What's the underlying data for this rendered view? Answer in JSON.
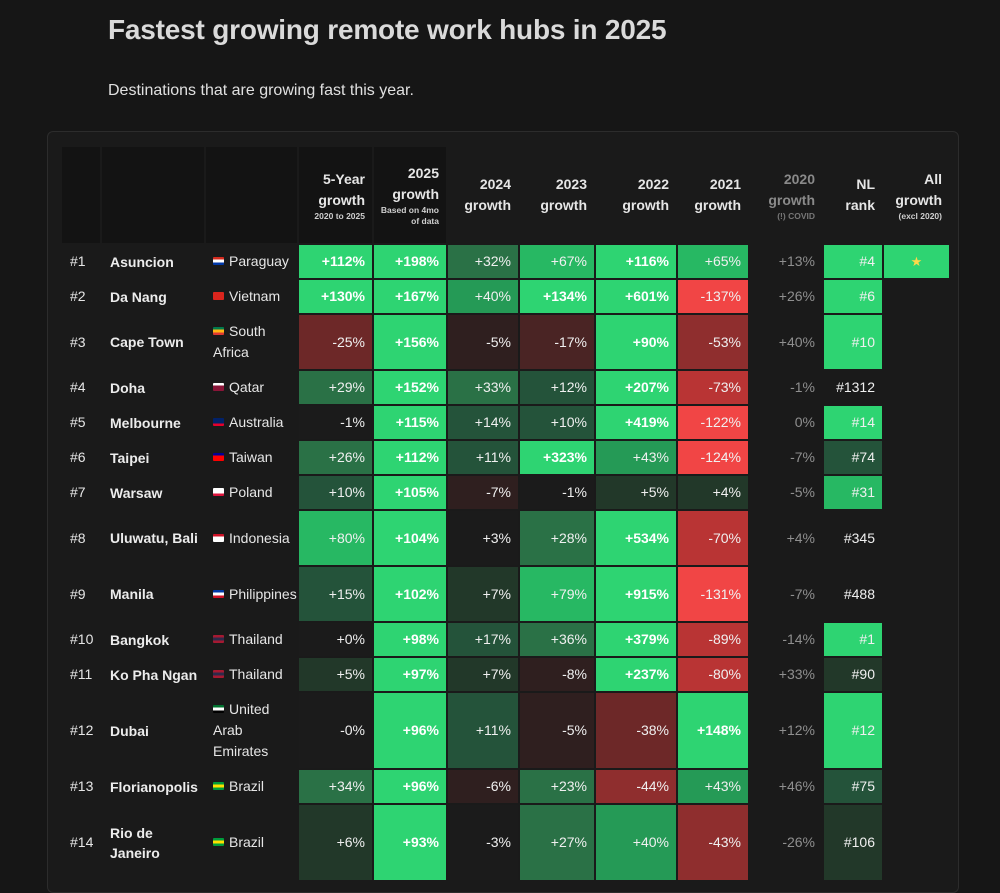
{
  "page": {
    "title": "Fastest growing remote work hubs in 2025",
    "subtitle": "Destinations that are growing fast this year."
  },
  "headers": [
    {
      "label": "5-Year growth",
      "note": "2020 to 2025"
    },
    {
      "label": "2025 growth",
      "note": "Based on 4mo of data"
    },
    {
      "label": "2024 growth",
      "note": ""
    },
    {
      "label": "2023 growth",
      "note": ""
    },
    {
      "label": "2022 growth",
      "note": ""
    },
    {
      "label": "2021 growth",
      "note": ""
    },
    {
      "label": "2020 growth",
      "note": "(!) COVID"
    },
    {
      "label": "NL rank",
      "note": ""
    },
    {
      "label": "All growth",
      "note": "(excl 2020)"
    }
  ],
  "rows": [
    {
      "rank": "#1",
      "city": "Asuncion",
      "country": "Paraguay",
      "flag": [
        "#d52b1e",
        "#ffffff",
        "#0038a8"
      ],
      "cells": [
        "+112%",
        "+198%",
        "+32%",
        "+67%",
        "+116%",
        "+65%",
        "+13%",
        "#4",
        "★"
      ]
    },
    {
      "rank": "#2",
      "city": "Da Nang",
      "country": "Vietnam",
      "flag": [
        "#da251d",
        "#da251d",
        "#da251d"
      ],
      "cells": [
        "+130%",
        "+167%",
        "+40%",
        "+134%",
        "+601%",
        "-137%",
        "+26%",
        "#6",
        ""
      ]
    },
    {
      "rank": "#3",
      "city": "Cape Town",
      "country": "South Africa",
      "flag": [
        "#007a4d",
        "#ffb612",
        "#de3831"
      ],
      "cells": [
        "-25%",
        "+156%",
        "-5%",
        "-17%",
        "+90%",
        "-53%",
        "+40%",
        "#10",
        ""
      ]
    },
    {
      "rank": "#4",
      "city": "Doha",
      "country": "Qatar",
      "flag": [
        "#ffffff",
        "#8a1538",
        "#8a1538"
      ],
      "cells": [
        "+29%",
        "+152%",
        "+33%",
        "+12%",
        "+207%",
        "-73%",
        "-1%",
        "#1312",
        ""
      ]
    },
    {
      "rank": "#5",
      "city": "Melbourne",
      "country": "Australia",
      "flag": [
        "#012169",
        "#012169",
        "#e4002b"
      ],
      "cells": [
        "-1%",
        "+115%",
        "+14%",
        "+10%",
        "+419%",
        "-122%",
        "0%",
        "#14",
        ""
      ]
    },
    {
      "rank": "#6",
      "city": "Taipei",
      "country": "Taiwan",
      "flag": [
        "#000095",
        "#fe0000",
        "#fe0000"
      ],
      "cells": [
        "+26%",
        "+112%",
        "+11%",
        "+323%",
        "+43%",
        "-124%",
        "-7%",
        "#74",
        ""
      ]
    },
    {
      "rank": "#7",
      "city": "Warsaw",
      "country": "Poland",
      "flag": [
        "#ffffff",
        "#ffffff",
        "#dc143c"
      ],
      "cells": [
        "+10%",
        "+105%",
        "-7%",
        "-1%",
        "+5%",
        "+4%",
        "-5%",
        "#31",
        ""
      ]
    },
    {
      "rank": "#8",
      "city": "Uluwatu, Bali",
      "country": "Indonesia",
      "flag": [
        "#ce1126",
        "#ffffff",
        "#ffffff"
      ],
      "cells": [
        "+80%",
        "+104%",
        "+3%",
        "+28%",
        "+534%",
        "-70%",
        "+4%",
        "#345",
        ""
      ]
    },
    {
      "rank": "#9",
      "city": "Manila",
      "country": "Philippines",
      "flag": [
        "#0038a8",
        "#ffffff",
        "#ce1126"
      ],
      "cells": [
        "+15%",
        "+102%",
        "+7%",
        "+79%",
        "+915%",
        "-131%",
        "-7%",
        "#488",
        ""
      ]
    },
    {
      "rank": "#10",
      "city": "Bangkok",
      "country": "Thailand",
      "flag": [
        "#a51931",
        "#2d2a4a",
        "#a51931"
      ],
      "cells": [
        "+0%",
        "+98%",
        "+17%",
        "+36%",
        "+379%",
        "-89%",
        "-14%",
        "#1",
        ""
      ]
    },
    {
      "rank": "#11",
      "city": "Ko Pha Ngan",
      "country": "Thailand",
      "flag": [
        "#a51931",
        "#2d2a4a",
        "#a51931"
      ],
      "cells": [
        "+5%",
        "+97%",
        "+7%",
        "-8%",
        "+237%",
        "-80%",
        "+33%",
        "#90",
        ""
      ]
    },
    {
      "rank": "#12",
      "city": "Dubai",
      "country": "United Arab Emirates",
      "flag": [
        "#00732f",
        "#ffffff",
        "#000000"
      ],
      "cells": [
        "-0%",
        "+96%",
        "+11%",
        "-5%",
        "-38%",
        "+148%",
        "+12%",
        "#12",
        ""
      ]
    },
    {
      "rank": "#13",
      "city": "Florianopolis",
      "country": "Brazil",
      "flag": [
        "#009c3b",
        "#ffdf00",
        "#009c3b"
      ],
      "cells": [
        "+34%",
        "+96%",
        "-6%",
        "+23%",
        "-44%",
        "+43%",
        "+46%",
        "#75",
        ""
      ]
    },
    {
      "rank": "#14",
      "city": "Rio de Janeiro",
      "country": "Brazil",
      "flag": [
        "#009c3b",
        "#ffdf00",
        "#009c3b"
      ],
      "cells": [
        "+6%",
        "+93%",
        "-3%",
        "+27%",
        "+40%",
        "-43%",
        "-26%",
        "#106",
        ""
      ]
    }
  ]
}
